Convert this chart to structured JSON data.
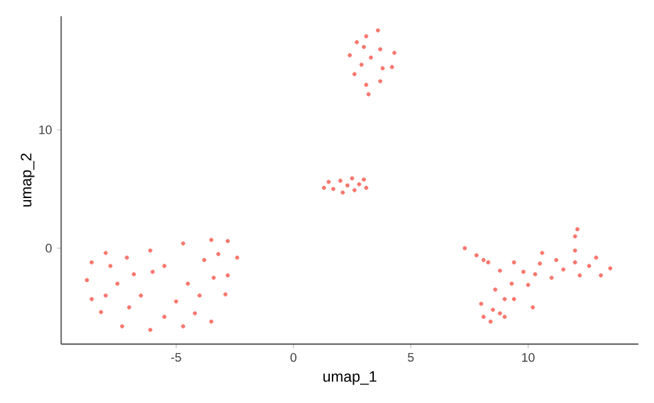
{
  "chart_data": {
    "type": "scatter",
    "xlabel": "umap_1",
    "ylabel": "umap_2",
    "xlim": [
      -9.9,
      14.7
    ],
    "ylim": [
      -8.1,
      19.6
    ],
    "xticks": [
      -5,
      0,
      5,
      10
    ],
    "yticks": [
      0,
      10
    ],
    "grid": false,
    "series": [
      {
        "color": "#f8766d",
        "x": [
          -8.8,
          -8.6,
          -8.0,
          -7.1,
          -6.1,
          -4.7,
          -3.5,
          -2.8,
          -2.4,
          -2.8,
          -2.9,
          -3.5,
          -4.7,
          -6.1,
          -7.3,
          -8.2,
          -8.6,
          -7.5,
          -6.5,
          -6,
          -5,
          -7,
          -5.5,
          -4.2,
          -4.5,
          -3.8,
          -3.2,
          -5.5,
          -8,
          -7.8,
          -6.8,
          -4,
          -3.4,
          3.6,
          4.3,
          4.2,
          3.7,
          3.2,
          3.1,
          2.6,
          2.4,
          2.7,
          3.1,
          3.3,
          2.9,
          3.7,
          3.0,
          3.8,
          1.3,
          1.5,
          2.0,
          2.5,
          3.0,
          3.1,
          2.6,
          2.1,
          1.7,
          2.3,
          2.8,
          7.3,
          7.8,
          8.1,
          8.3,
          12.1,
          12.0,
          8.1,
          8.0,
          8.6,
          8.8,
          9.4,
          10.6,
          12.0,
          12.9,
          13.5,
          13.1,
          12.2,
          11.0,
          10.0,
          9.4,
          10.2,
          9.0,
          8.4,
          8.5,
          9.0,
          9.3,
          9.8,
          10.5,
          11.2,
          12.0,
          12.6,
          11.5,
          10.3,
          8.8
        ],
        "values": [
          -2.7,
          -1.2,
          -0.4,
          -0.8,
          -0.2,
          0.4,
          0.7,
          0.6,
          -0.8,
          -2.3,
          -3.9,
          -6.2,
          -6.6,
          -6.9,
          -6.6,
          -5.4,
          -4.3,
          -3,
          -4,
          -2,
          -4.5,
          -5,
          -5.8,
          -5.5,
          -3,
          -1,
          -0.5,
          -1.5,
          -4,
          -1.5,
          -2.2,
          -4,
          -2.5,
          18.4,
          16.5,
          15.3,
          14.1,
          13.0,
          13.8,
          14.7,
          16.3,
          17.4,
          17.9,
          16.1,
          15.5,
          16.8,
          17.0,
          15.2,
          5.1,
          5.6,
          5.7,
          5.9,
          5.8,
          5.1,
          4.9,
          4.7,
          5.0,
          5.3,
          5.4,
          0,
          -0.6,
          -1.0,
          -1.2,
          1.6,
          1.0,
          -5.8,
          -4.7,
          -3.5,
          -1.9,
          -1.2,
          -0.4,
          -0.2,
          -0.8,
          -1.7,
          -2.3,
          -2.3,
          -2.5,
          -3.1,
          -4.3,
          -5.0,
          -5.8,
          -6.2,
          -5.2,
          -4.3,
          -3.0,
          -2.0,
          -1.3,
          -1.0,
          -1.2,
          -1.5,
          -1.8,
          -2.2,
          -5.5
        ]
      }
    ]
  }
}
